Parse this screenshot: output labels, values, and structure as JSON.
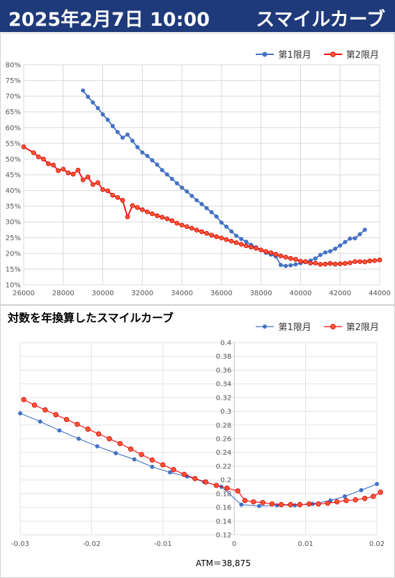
{
  "header": {
    "datetime": "2025年2月7日 10:00",
    "title": "スマイルカーブ"
  },
  "colors": {
    "series1": "#4472c4",
    "series2": "#ff0000",
    "series2_fill": "#ff5533",
    "header_bg": "#1f3a7a"
  },
  "chart_data": [
    {
      "type": "line",
      "title": "",
      "xlim": [
        26000,
        44000
      ],
      "ylim": [
        10,
        80
      ],
      "x_ticks": [
        "26000",
        "28000",
        "30000",
        "32000",
        "34000",
        "36000",
        "38000",
        "40000",
        "42000",
        "44000"
      ],
      "y_ticks": [
        "10%",
        "15%",
        "20%",
        "25%",
        "30%",
        "35%",
        "40%",
        "45%",
        "50%",
        "55%",
        "60%",
        "65%",
        "70%",
        "75%",
        "80%"
      ],
      "legend_position": "top-right",
      "grid": true,
      "series": [
        {
          "name": "第1限月",
          "x": [
            29000,
            29250,
            29500,
            29750,
            30000,
            30250,
            30500,
            30750,
            31000,
            31250,
            31500,
            31750,
            32000,
            32250,
            32500,
            32750,
            33000,
            33250,
            33500,
            33750,
            34000,
            34250,
            34500,
            34750,
            35000,
            35250,
            35500,
            35750,
            36000,
            36250,
            36500,
            36750,
            37000,
            37250,
            37500,
            37750,
            38000,
            38250,
            38500,
            38750,
            39000,
            39250,
            39500,
            39750,
            40000,
            40250,
            40500,
            40750,
            41000,
            41250,
            41500,
            41750,
            42000,
            42250,
            42500,
            42750,
            43000,
            43250
          ],
          "values": [
            71.8,
            69.8,
            68.0,
            66.2,
            64.2,
            62.5,
            60.5,
            58.6,
            56.8,
            57.8,
            55.8,
            53.8,
            52.1,
            51.0,
            49.6,
            48.2,
            46.5,
            45.1,
            43.7,
            42.3,
            40.9,
            39.7,
            38.3,
            36.9,
            35.7,
            34.4,
            33.1,
            31.7,
            29.8,
            28.5,
            27.0,
            25.6,
            24.6,
            23.7,
            22.7,
            21.9,
            21.1,
            20.2,
            19.6,
            19.0,
            16.3,
            16.0,
            16.2,
            16.5,
            16.9,
            17.2,
            17.7,
            18.4,
            19.5,
            20.3,
            20.7,
            21.5,
            22.5,
            23.6,
            24.7,
            24.8,
            26.1,
            27.5
          ]
        },
        {
          "name": "第2限月",
          "x": [
            26000,
            26500,
            26750,
            27000,
            27250,
            27500,
            27750,
            28000,
            28250,
            28500,
            28750,
            29000,
            29250,
            29500,
            29750,
            30000,
            30250,
            30500,
            30750,
            31000,
            31250,
            31500,
            31750,
            32000,
            32250,
            32500,
            32750,
            33000,
            33250,
            33500,
            33750,
            34000,
            34250,
            34500,
            34750,
            35000,
            35250,
            35500,
            35750,
            36000,
            36250,
            36500,
            36750,
            37000,
            37250,
            37500,
            37750,
            38000,
            38250,
            38500,
            38750,
            39000,
            39250,
            39500,
            39750,
            40000,
            40250,
            40500,
            40750,
            41000,
            41250,
            41500,
            41750,
            42000,
            42250,
            42500,
            42750,
            43000,
            43250,
            43500,
            43750,
            44000
          ],
          "values": [
            53.9,
            52.0,
            50.7,
            50.0,
            48.5,
            48.1,
            46.3,
            46.8,
            45.6,
            45.2,
            46.5,
            43.4,
            44.3,
            41.9,
            42.5,
            40.3,
            39.9,
            38.5,
            37.8,
            36.9,
            31.6,
            35.2,
            34.6,
            33.9,
            33.2,
            32.6,
            32.0,
            31.5,
            31.0,
            30.4,
            29.6,
            29.0,
            28.5,
            28.0,
            27.4,
            26.9,
            26.4,
            25.8,
            25.3,
            24.9,
            24.4,
            23.9,
            23.4,
            22.9,
            22.4,
            22.0,
            21.6,
            21.1,
            20.6,
            20.2,
            19.7,
            19.2,
            18.8,
            18.4,
            18.1,
            17.5,
            17.4,
            16.9,
            16.9,
            16.5,
            16.6,
            16.8,
            16.6,
            16.7,
            16.8,
            17.0,
            17.4,
            17.4,
            17.3,
            17.6,
            17.7,
            17.9
          ]
        }
      ]
    },
    {
      "type": "line",
      "title": "対数を年換算したスマイルカーブ",
      "xlim": [
        -0.03,
        0.02
      ],
      "ylim": [
        0.12,
        0.4
      ],
      "x_ticks": [
        "-0.03",
        "-0.02",
        "-0.01",
        "0",
        "0.01",
        "0.02"
      ],
      "y_ticks": [
        "0.12",
        "0.14",
        "0.16",
        "0.18",
        "0.2",
        "0.22",
        "0.24",
        "0.26",
        "0.28",
        "0.3",
        "0.32",
        "0.34",
        "0.36",
        "0.38",
        "0.4"
      ],
      "legend_position": "top-right",
      "grid": true,
      "annotation": "ATM＝38,875",
      "series": [
        {
          "name": "第1限月",
          "x": [
            -0.03,
            -0.0272,
            -0.0245,
            -0.0218,
            -0.0192,
            -0.0166,
            -0.014,
            -0.0115,
            -0.009,
            -0.0066,
            -0.0042,
            -0.0018,
            0.001,
            0.0035,
            0.006,
            0.0085,
            0.011,
            0.0135,
            0.0155,
            0.0178,
            0.02
          ],
          "values": [
            0.297,
            0.285,
            0.272,
            0.26,
            0.249,
            0.239,
            0.23,
            0.219,
            0.211,
            0.205,
            0.197,
            0.19,
            0.164,
            0.162,
            0.163,
            0.163,
            0.165,
            0.17,
            0.176,
            0.185,
            0.194
          ]
        },
        {
          "name": "第2限月",
          "x": [
            -0.0295,
            -0.028,
            -0.0265,
            -0.025,
            -0.0235,
            -0.022,
            -0.0205,
            -0.019,
            -0.0175,
            -0.016,
            -0.0145,
            -0.013,
            -0.0115,
            -0.01,
            -0.0085,
            -0.007,
            -0.0055,
            -0.004,
            -0.0025,
            -0.001,
            0.0005,
            0.0015,
            0.0027,
            0.004,
            0.0053,
            0.0066,
            0.0079,
            0.0092,
            0.0105,
            0.0118,
            0.0131,
            0.0144,
            0.0157,
            0.017,
            0.0183,
            0.0195,
            0.0205
          ],
          "values": [
            0.317,
            0.309,
            0.302,
            0.295,
            0.288,
            0.281,
            0.274,
            0.267,
            0.26,
            0.253,
            0.245,
            0.237,
            0.229,
            0.222,
            0.215,
            0.208,
            0.202,
            0.197,
            0.192,
            0.188,
            0.184,
            0.17,
            0.168,
            0.167,
            0.165,
            0.164,
            0.164,
            0.164,
            0.165,
            0.165,
            0.166,
            0.168,
            0.17,
            0.171,
            0.173,
            0.176,
            0.182
          ]
        }
      ]
    }
  ]
}
